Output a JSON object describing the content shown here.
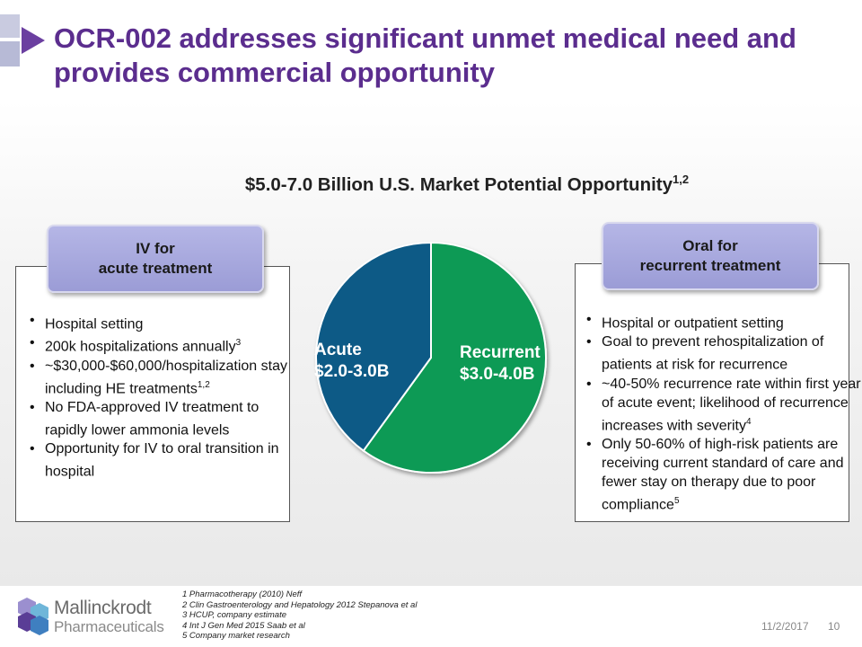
{
  "slide": {
    "title": "OCR-002 addresses significant unmet medical need and provides commercial opportunity",
    "market_heading": "$5.0-7.0 Billion U.S. Market Potential Opportunity",
    "market_heading_sup": "1,2"
  },
  "left_panel": {
    "tab_line1": "IV for",
    "tab_line2": "acute treatment",
    "bullets": [
      {
        "text": "Hospital setting",
        "sup": ""
      },
      {
        "text": "200k hospitalizations annually",
        "sup": "3"
      },
      {
        "text": "~$30,000-$60,000/hospitalization stay including HE treatments",
        "sup": "1,2"
      },
      {
        "text": "No FDA-approved IV treatment to rapidly lower ammonia levels",
        "sup": ""
      },
      {
        "text": "Opportunity for IV to oral transition in hospital",
        "sup": ""
      }
    ]
  },
  "right_panel": {
    "tab_line1": "Oral for",
    "tab_line2": "recurrent treatment",
    "bullets": [
      {
        "text": "Hospital or outpatient setting",
        "sup": ""
      },
      {
        "text": "Goal to prevent rehospitalization of patients at risk for recurrence",
        "sup": ""
      },
      {
        "text": "~40-50% recurrence rate within first year of acute event; likelihood of recurrence increases with severity",
        "sup": "4"
      },
      {
        "text": "Only 50-60% of high-risk patients are receiving current standard of care and fewer stay on therapy due to poor compliance",
        "sup": "5"
      }
    ]
  },
  "pie": {
    "slices": [
      {
        "name": "Recurrent",
        "range": "$3.0-4.0B",
        "share": 0.6,
        "color": "#0b9a55"
      },
      {
        "name": "Acute",
        "range": "$2.0-3.0B",
        "share": 0.4,
        "color": "#0e5a86"
      }
    ]
  },
  "footnotes": [
    "1 Pharmacotherapy (2010) Neff",
    "2 Clin Gastroenterology and Hepatology 2012 Stepanova et al",
    "3 HCUP, company estimate",
    "4 Int J Gen Med 2015 Saab et al",
    "5 Company market research"
  ],
  "footer": {
    "date": "11/2/2017",
    "page": "10",
    "logo_word1": "Mallinckrodt",
    "logo_word2": "Pharmaceuticals"
  },
  "colors": {
    "title": "#5b2d8e",
    "tab": "#9b9cd6"
  }
}
